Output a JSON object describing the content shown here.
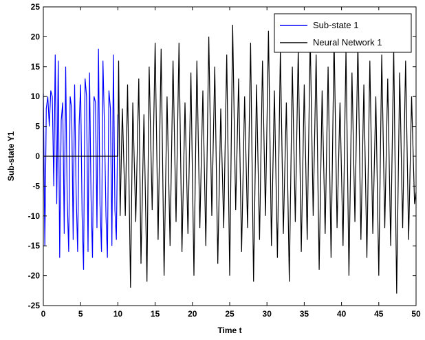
{
  "chart_data": {
    "type": "line",
    "title": "",
    "xlabel": "Time t",
    "ylabel": "Sub-state Y1",
    "xlim": [
      0,
      50
    ],
    "ylim": [
      -25,
      25
    ],
    "xticks": [
      0,
      5,
      10,
      15,
      20,
      25,
      30,
      35,
      40,
      45,
      50
    ],
    "yticks": [
      -25,
      -20,
      -15,
      -10,
      -5,
      0,
      5,
      10,
      15,
      20,
      25
    ],
    "grid": false,
    "legend_position": "top-right",
    "series": [
      {
        "name": "Sub-state 1",
        "color": "#0000ff",
        "x": [
          0,
          0.2,
          0.4,
          0.6,
          0.8,
          1.0,
          1.2,
          1.4,
          1.6,
          1.8,
          2.0,
          2.2,
          2.4,
          2.6,
          2.8,
          3.0,
          3.2,
          3.4,
          3.6,
          3.8,
          4.0,
          4.2,
          4.4,
          4.6,
          4.8,
          5.0,
          5.2,
          5.4,
          5.6,
          5.8,
          6.0,
          6.2,
          6.4,
          6.6,
          6.8,
          7.0,
          7.2,
          7.4,
          7.6,
          7.8,
          8.0,
          8.2,
          8.4,
          8.6,
          8.8,
          9.0,
          9.2,
          9.4,
          9.6,
          9.8,
          10.0
        ],
        "values": [
          10.5,
          -15,
          8,
          10,
          5,
          11,
          10,
          -5,
          17,
          -8,
          16,
          -17,
          6,
          9,
          -13,
          15,
          -7,
          -16,
          10,
          8,
          -14,
          12,
          -6,
          -16,
          5,
          12,
          -10,
          -19,
          13,
          10,
          -16,
          14,
          -7,
          -17,
          10,
          9,
          -12,
          18,
          -8,
          -16,
          16,
          5,
          -10,
          -17,
          11,
          8,
          -15,
          17,
          -9,
          -14,
          7
        ]
      },
      {
        "name": "Neural Network 1",
        "color": "#000000",
        "x": [
          0,
          10,
          10.1,
          10.3,
          10.6,
          11.0,
          11.3,
          11.7,
          12.0,
          12.4,
          12.8,
          13.1,
          13.5,
          13.9,
          14.2,
          14.6,
          15.0,
          15.4,
          15.8,
          16.2,
          16.6,
          17.0,
          17.4,
          17.8,
          18.2,
          18.6,
          19.0,
          19.4,
          19.8,
          20.2,
          20.6,
          21.0,
          21.4,
          21.8,
          22.2,
          22.6,
          23.0,
          23.4,
          23.8,
          24.2,
          24.6,
          25.0,
          25.4,
          25.8,
          26.2,
          26.6,
          27.0,
          27.4,
          27.8,
          28.2,
          28.6,
          29.0,
          29.4,
          29.8,
          30.2,
          30.6,
          31.0,
          31.4,
          31.8,
          32.2,
          32.6,
          33.0,
          33.4,
          33.8,
          34.2,
          34.6,
          35.0,
          35.4,
          35.8,
          36.2,
          36.6,
          37.0,
          37.4,
          37.8,
          38.2,
          38.6,
          39.0,
          39.4,
          39.8,
          40.2,
          40.6,
          41.0,
          41.4,
          41.8,
          42.2,
          42.6,
          43.0,
          43.4,
          43.8,
          44.2,
          44.6,
          45.0,
          45.4,
          45.8,
          46.2,
          46.6,
          47.0,
          47.4,
          47.8,
          48.2,
          48.6,
          49.0,
          49.4,
          49.8,
          50.0
        ],
        "values": [
          0,
          0,
          16,
          -10,
          8,
          -10,
          12,
          -22,
          9,
          -11,
          13,
          -18,
          7,
          -21,
          15,
          -9,
          19,
          -14,
          18,
          -20,
          10,
          -15,
          16,
          -11,
          19,
          -16,
          9,
          -13,
          14,
          -20,
          16,
          -12,
          11,
          -15,
          20,
          -10,
          15,
          -18,
          8,
          -12,
          17,
          -20,
          22,
          -9,
          13,
          -16,
          10,
          -12,
          19,
          -21,
          12,
          -14,
          16,
          -10,
          21,
          -15,
          11,
          -17,
          18,
          -13,
          9,
          -21,
          15,
          -11,
          18,
          -16,
          12,
          -14,
          20,
          -10,
          17,
          -19,
          11,
          -13,
          15,
          -17,
          20,
          -12,
          9,
          -15,
          18,
          -20,
          14,
          -11,
          19,
          -14,
          12,
          -17,
          16,
          -13,
          10,
          -20,
          17,
          -12,
          13,
          -15,
          18,
          -23,
          14,
          -12,
          16,
          -14,
          10,
          -8,
          -6
        ]
      }
    ]
  }
}
